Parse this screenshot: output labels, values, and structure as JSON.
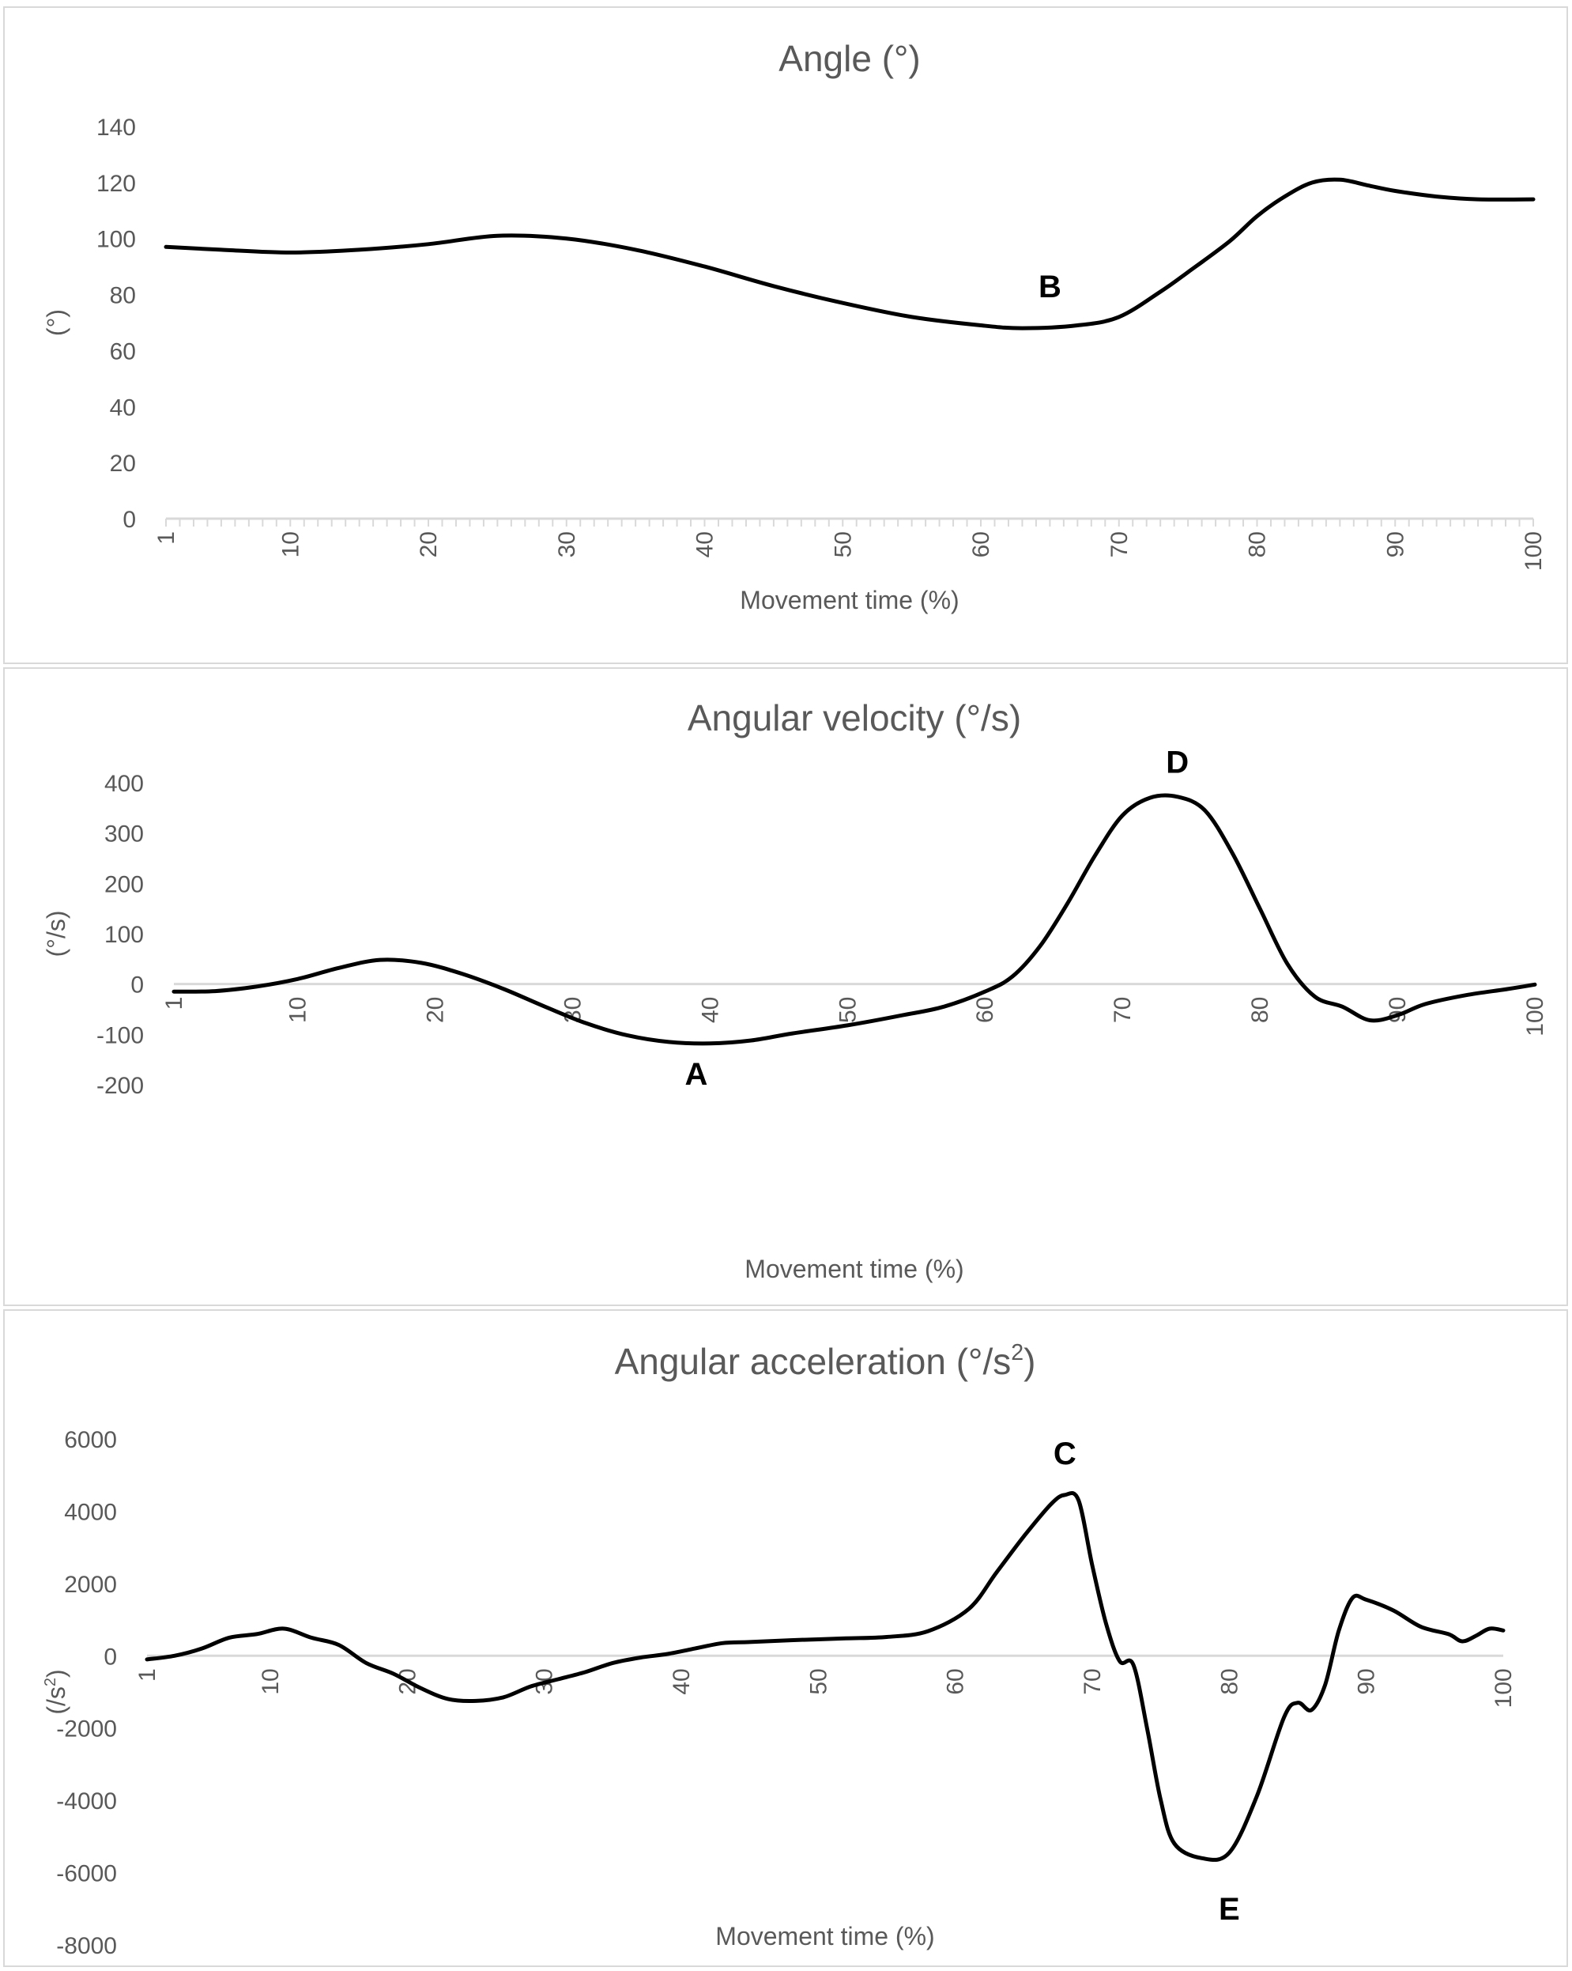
{
  "chart_data": [
    {
      "type": "line",
      "title": "Angle (°)",
      "xlabel": "Movement time (%)",
      "ylabel": "(°)",
      "xlim": [
        1,
        100
      ],
      "ylim": [
        0,
        140
      ],
      "x_ticks": [
        "1",
        "10",
        "20",
        "30",
        "40",
        "50",
        "60",
        "70",
        "80",
        "90",
        "100"
      ],
      "y_ticks": [
        "0",
        "20",
        "40",
        "60",
        "80",
        "100",
        "120",
        "140"
      ],
      "series": [
        {
          "name": "Angle",
          "points": [
            [
              1,
              97
            ],
            [
              5,
              96
            ],
            [
              10,
              95
            ],
            [
              15,
              96
            ],
            [
              20,
              98
            ],
            [
              25,
              101
            ],
            [
              30,
              100
            ],
            [
              35,
              96
            ],
            [
              40,
              90
            ],
            [
              45,
              83
            ],
            [
              50,
              77
            ],
            [
              55,
              72
            ],
            [
              60,
              69
            ],
            [
              63,
              68
            ],
            [
              67,
              69
            ],
            [
              70,
              72
            ],
            [
              73,
              81
            ],
            [
              75,
              88
            ],
            [
              78,
              99
            ],
            [
              80,
              108
            ],
            [
              82,
              115
            ],
            [
              84,
              120
            ],
            [
              86,
              121
            ],
            [
              88,
              119
            ],
            [
              90,
              117
            ],
            [
              93,
              115
            ],
            [
              96,
              114
            ],
            [
              100,
              114
            ]
          ]
        }
      ],
      "annotations": [
        {
          "label": "B",
          "x": 65,
          "y": 79
        }
      ]
    },
    {
      "type": "line",
      "title": "Angular velocity (°/s)",
      "xlabel": "Movement time (%)",
      "ylabel": "(°/s)",
      "xlim": [
        1,
        100
      ],
      "ylim": [
        -200,
        400
      ],
      "x_ticks": [
        "1",
        "10",
        "20",
        "30",
        "40",
        "50",
        "60",
        "70",
        "80",
        "90",
        "100"
      ],
      "y_ticks": [
        "-200",
        "-100",
        "0",
        "100",
        "200",
        "300",
        "400"
      ],
      "series": [
        {
          "name": "Angular velocity",
          "points": [
            [
              1,
              -15
            ],
            [
              4,
              -14
            ],
            [
              7,
              -5
            ],
            [
              10,
              10
            ],
            [
              13,
              32
            ],
            [
              16,
              48
            ],
            [
              19,
              42
            ],
            [
              22,
              20
            ],
            [
              25,
              -10
            ],
            [
              28,
              -45
            ],
            [
              31,
              -78
            ],
            [
              34,
              -102
            ],
            [
              37,
              -115
            ],
            [
              40,
              -118
            ],
            [
              43,
              -112
            ],
            [
              46,
              -98
            ],
            [
              50,
              -82
            ],
            [
              54,
              -62
            ],
            [
              57,
              -45
            ],
            [
              60,
              -15
            ],
            [
              62,
              15
            ],
            [
              64,
              75
            ],
            [
              66,
              160
            ],
            [
              68,
              255
            ],
            [
              70,
              335
            ],
            [
              72,
              370
            ],
            [
              74,
              372
            ],
            [
              76,
              345
            ],
            [
              78,
              260
            ],
            [
              80,
              150
            ],
            [
              82,
              40
            ],
            [
              84,
              -25
            ],
            [
              86,
              -45
            ],
            [
              88,
              -72
            ],
            [
              90,
              -62
            ],
            [
              92,
              -40
            ],
            [
              95,
              -22
            ],
            [
              98,
              -10
            ],
            [
              100,
              -1
            ]
          ]
        }
      ],
      "annotations": [
        {
          "label": "A",
          "x": 39,
          "y": -200
        },
        {
          "label": "D",
          "x": 74,
          "y": 420
        }
      ]
    },
    {
      "type": "line",
      "title": "Angular acceleration (°/s²)",
      "xlabel": "Movement time (%)",
      "ylabel": "(/s²)",
      "xlim": [
        1,
        100
      ],
      "ylim": [
        -8000,
        6000
      ],
      "x_ticks": [
        "1",
        "10",
        "20",
        "30",
        "40",
        "50",
        "60",
        "70",
        "80",
        "90",
        "100"
      ],
      "y_ticks": [
        "-8000",
        "-6000",
        "-4000",
        "-2000",
        "0",
        "2000",
        "4000",
        "6000"
      ],
      "series": [
        {
          "name": "Angular acceleration",
          "points": [
            [
              1,
              -100
            ],
            [
              3,
              0
            ],
            [
              5,
              200
            ],
            [
              7,
              500
            ],
            [
              9,
              600
            ],
            [
              11,
              750
            ],
            [
              13,
              500
            ],
            [
              15,
              300
            ],
            [
              17,
              -200
            ],
            [
              19,
              -500
            ],
            [
              21,
              -900
            ],
            [
              23,
              -1200
            ],
            [
              25,
              -1250
            ],
            [
              27,
              -1150
            ],
            [
              29,
              -850
            ],
            [
              31,
              -650
            ],
            [
              33,
              -450
            ],
            [
              35,
              -200
            ],
            [
              37,
              -50
            ],
            [
              39,
              50
            ],
            [
              41,
              200
            ],
            [
              43,
              350
            ],
            [
              45,
              380
            ],
            [
              48,
              430
            ],
            [
              52,
              480
            ],
            [
              55,
              520
            ],
            [
              58,
              680
            ],
            [
              61,
              1300
            ],
            [
              63,
              2300
            ],
            [
              65,
              3300
            ],
            [
              67,
              4200
            ],
            [
              68,
              4450
            ],
            [
              69,
              4300
            ],
            [
              70,
              2500
            ],
            [
              71,
              900
            ],
            [
              72,
              -150
            ],
            [
              73,
              -250
            ],
            [
              74,
              -2000
            ],
            [
              75,
              -4000
            ],
            [
              76,
              -5200
            ],
            [
              78,
              -5600
            ],
            [
              80,
              -5450
            ],
            [
              82,
              -3900
            ],
            [
              84,
              -1700
            ],
            [
              85,
              -1300
            ],
            [
              86,
              -1500
            ],
            [
              87,
              -800
            ],
            [
              88,
              700
            ],
            [
              89,
              1600
            ],
            [
              90,
              1550
            ],
            [
              92,
              1250
            ],
            [
              94,
              800
            ],
            [
              96,
              600
            ],
            [
              97,
              400
            ],
            [
              98,
              550
            ],
            [
              99,
              750
            ],
            [
              100,
              700
            ]
          ]
        }
      ],
      "annotations": [
        {
          "label": "C",
          "x": 68,
          "y": 5300
        },
        {
          "label": "E",
          "x": 80,
          "y": -7300
        }
      ]
    }
  ]
}
